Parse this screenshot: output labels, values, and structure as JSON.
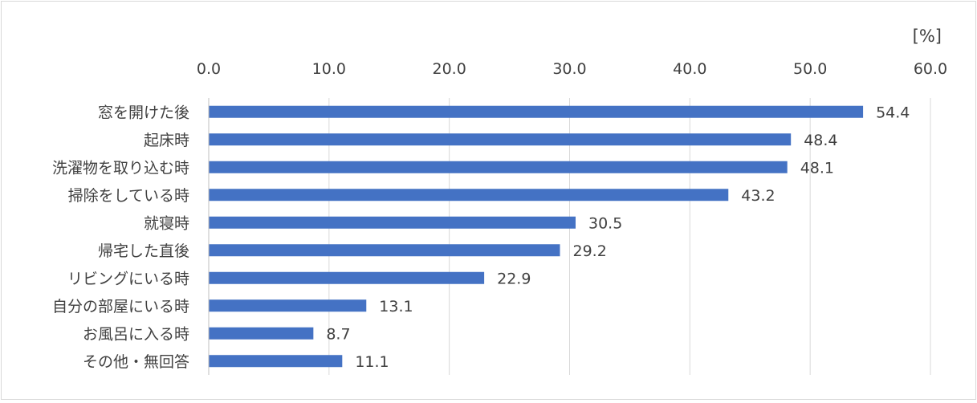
{
  "chart_data": {
    "type": "bar",
    "orientation": "horizontal",
    "unit_label": "[%]",
    "axis_position": "top",
    "xlim": [
      0,
      60
    ],
    "ticks": [
      "0.0",
      "10.0",
      "20.0",
      "30.0",
      "40.0",
      "50.0",
      "60.0"
    ],
    "categories": [
      "窓を開けた後",
      "起床時",
      "洗濯物を取り込む時",
      "掃除をしている時",
      "就寝時",
      "帰宅した直後",
      "リビングにいる時",
      "自分の部屋にいる時",
      "お風呂に入る時",
      "その他・無回答"
    ],
    "values": [
      54.4,
      48.4,
      48.1,
      43.2,
      30.5,
      29.2,
      22.9,
      13.1,
      8.7,
      11.1
    ],
    "value_labels": [
      "54.4",
      "48.4",
      "48.1",
      "43.2",
      "30.5",
      "29.2",
      "22.9",
      "13.1",
      "8.7",
      "11.1"
    ],
    "bar_color": "#4472c4",
    "gridlines": true
  }
}
